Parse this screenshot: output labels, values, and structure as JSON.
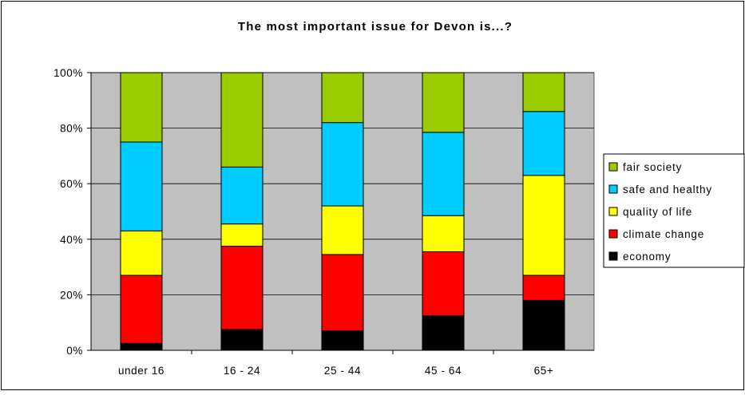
{
  "chart_data": {
    "type": "bar",
    "stacked": true,
    "normalized": true,
    "title": "The most important issue for Devon is...?",
    "categories": [
      "under 16",
      "16 - 24",
      "25 - 44",
      "45 - 64",
      "65+"
    ],
    "ylim": [
      0,
      100
    ],
    "yticks": [
      0,
      20,
      40,
      60,
      80,
      100
    ],
    "ytick_labels": [
      "0%",
      "20%",
      "40%",
      "60%",
      "80%",
      "100%"
    ],
    "grid": true,
    "legend_position": "right",
    "series": [
      {
        "name": "economy",
        "color": "#000000",
        "values": [
          2.5,
          7.5,
          7,
          12.5,
          18
        ]
      },
      {
        "name": "climate change",
        "color": "#ff0000",
        "values": [
          24.5,
          30,
          27.5,
          23,
          9
        ]
      },
      {
        "name": "quality of life",
        "color": "#ffff00",
        "values": [
          16,
          8,
          17.5,
          13,
          36
        ]
      },
      {
        "name": "safe and healthy",
        "color": "#00ccff",
        "values": [
          32,
          20.5,
          30,
          30,
          23
        ]
      },
      {
        "name": "fair society",
        "color": "#99cc00",
        "values": [
          25,
          34,
          18,
          21.5,
          14
        ]
      }
    ],
    "colors": {
      "plot_background": "#c0c0c0",
      "gridline": "#000000"
    }
  }
}
